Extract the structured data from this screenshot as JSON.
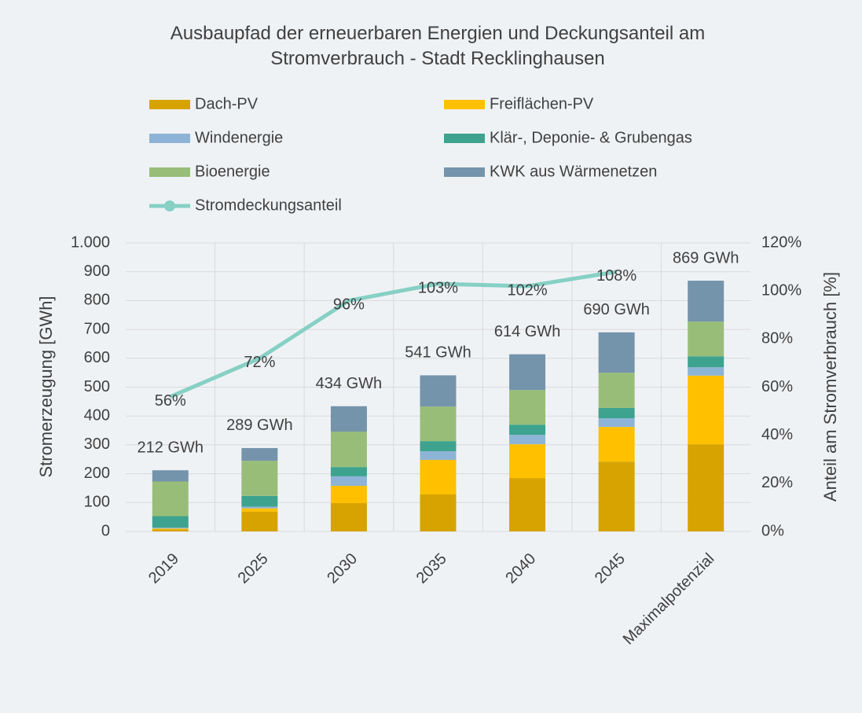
{
  "chart_data": {
    "type": "bar",
    "stacked": true,
    "title": "Ausbaupfad der erneuerbaren Energien und Deckungsanteil am Stromverbrauch - Stadt Recklinghausen",
    "y_label": "Stromerzeugung [GWh]",
    "y2_label": "Anteil am Stromverbrauch [%]",
    "categories": [
      "2019",
      "2025",
      "2030",
      "2035",
      "2040",
      "2045",
      "Maximalpotenzial"
    ],
    "series": [
      {
        "name": "Dach-PV",
        "color": "#d6a300",
        "values": [
          7,
          68,
          98,
          128,
          185,
          242,
          302
        ]
      },
      {
        "name": "Freiflächen-PV",
        "color": "#ffc000",
        "values": [
          3,
          12,
          60,
          120,
          117,
          120,
          238
        ]
      },
      {
        "name": "Windenergie",
        "color": "#8db4d6",
        "values": [
          3,
          6,
          33,
          30,
          33,
          30,
          29
        ]
      },
      {
        "name": "Klär-, Deponie- & Grubengas",
        "color": "#3da38e",
        "values": [
          40,
          37,
          32,
          35,
          35,
          36,
          38
        ]
      },
      {
        "name": "Bioenergie",
        "color": "#98bd79",
        "values": [
          120,
          122,
          123,
          120,
          120,
          122,
          120
        ]
      },
      {
        "name": "KWK aus Wärmenetzen",
        "color": "#7494ab",
        "values": [
          39,
          44,
          88,
          108,
          124,
          140,
          142
        ]
      },
      {
        "name": "Stromdeckungsanteil",
        "color": "#86d0c4",
        "type": "line",
        "axis": "y2",
        "values": [
          56,
          72,
          96,
          103,
          102,
          108,
          null
        ],
        "value_labels": [
          "56%",
          "72%",
          "96%",
          "103%",
          "102%",
          "108%",
          null
        ]
      }
    ],
    "totals": {
      "values": [
        212,
        289,
        434,
        541,
        614,
        690,
        869
      ],
      "value_labels": [
        "212 GWh",
        "289 GWh",
        "434 GWh",
        "541 GWh",
        "614 GWh",
        "690 GWh",
        "869 GWh"
      ]
    },
    "ylim": [
      0,
      1000
    ],
    "yticks": [
      0,
      100,
      200,
      300,
      400,
      500,
      600,
      700,
      800,
      900,
      {
        "value": 1000,
        "label": "1.000"
      }
    ],
    "y2lim": [
      0,
      120
    ],
    "y2ticks": [
      {
        "value": 0,
        "label": "0%"
      },
      {
        "value": 20,
        "label": "20%"
      },
      {
        "value": 40,
        "label": "40%"
      },
      {
        "value": 60,
        "label": "60%"
      },
      {
        "value": 80,
        "label": "80%"
      },
      {
        "value": 100,
        "label": "100%"
      },
      {
        "value": 120,
        "label": "120%"
      }
    ],
    "grid": true,
    "legend": "top"
  }
}
